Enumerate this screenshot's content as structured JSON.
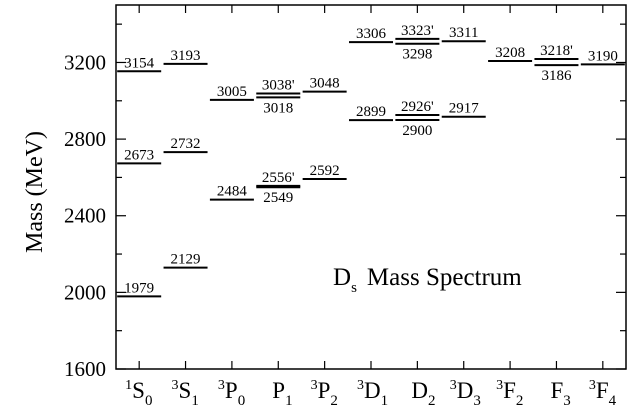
{
  "chart_data": {
    "type": "level-diagram",
    "title_main": "D",
    "title_sub": "s",
    "title_rest": "Mass Spectrum",
    "ylabel": "Mass  (MeV)",
    "ylim": [
      1600,
      3500
    ],
    "yticks": [
      1600,
      2000,
      2400,
      2800,
      3200
    ],
    "categories": [
      {
        "pre": "1",
        "main": "S",
        "sub": "0"
      },
      {
        "pre": "3",
        "main": "S",
        "sub": "1"
      },
      {
        "pre": "3",
        "main": "P",
        "sub": "0"
      },
      {
        "pre": "",
        "main": "P",
        "sub": "1"
      },
      {
        "pre": "3",
        "main": "P",
        "sub": "2"
      },
      {
        "pre": "3",
        "main": "D",
        "sub": "1"
      },
      {
        "pre": "",
        "main": "D",
        "sub": "2"
      },
      {
        "pre": "3",
        "main": "D",
        "sub": "3"
      },
      {
        "pre": "3",
        "main": "F",
        "sub": "2"
      },
      {
        "pre": "",
        "main": "F",
        "sub": "3"
      },
      {
        "pre": "3",
        "main": "F",
        "sub": "4"
      }
    ],
    "levels": [
      {
        "cat": 0,
        "value": 1979,
        "label": "1979",
        "pos": "above"
      },
      {
        "cat": 0,
        "value": 2673,
        "label": "2673",
        "pos": "above"
      },
      {
        "cat": 0,
        "value": 3154,
        "label": "3154",
        "pos": "above"
      },
      {
        "cat": 1,
        "value": 2129,
        "label": "2129",
        "pos": "above"
      },
      {
        "cat": 1,
        "value": 2732,
        "label": "2732",
        "pos": "above"
      },
      {
        "cat": 1,
        "value": 3193,
        "label": "3193",
        "pos": "above"
      },
      {
        "cat": 2,
        "value": 2484,
        "label": "2484",
        "pos": "above"
      },
      {
        "cat": 2,
        "value": 3005,
        "label": "3005",
        "pos": "above"
      },
      {
        "cat": 3,
        "value": 2549,
        "label": "2549",
        "pos": "below"
      },
      {
        "cat": 3,
        "value": 2556,
        "label": "2556'",
        "pos": "above"
      },
      {
        "cat": 3,
        "value": 3018,
        "label": "3018",
        "pos": "below"
      },
      {
        "cat": 3,
        "value": 3038,
        "label": "3038'",
        "pos": "above"
      },
      {
        "cat": 4,
        "value": 2592,
        "label": "2592",
        "pos": "above"
      },
      {
        "cat": 4,
        "value": 3048,
        "label": "3048",
        "pos": "above"
      },
      {
        "cat": 5,
        "value": 2899,
        "label": "2899",
        "pos": "above"
      },
      {
        "cat": 5,
        "value": 3306,
        "label": "3306",
        "pos": "above"
      },
      {
        "cat": 6,
        "value": 2900,
        "label": "2900",
        "pos": "below"
      },
      {
        "cat": 6,
        "value": 2926,
        "label": "2926'",
        "pos": "above"
      },
      {
        "cat": 6,
        "value": 3298,
        "label": "3298",
        "pos": "below"
      },
      {
        "cat": 6,
        "value": 3323,
        "label": "3323'",
        "pos": "above"
      },
      {
        "cat": 7,
        "value": 2917,
        "label": "2917",
        "pos": "above"
      },
      {
        "cat": 7,
        "value": 3311,
        "label": "3311",
        "pos": "above"
      },
      {
        "cat": 8,
        "value": 3208,
        "label": "3208",
        "pos": "above"
      },
      {
        "cat": 9,
        "value": 3186,
        "label": "3186",
        "pos": "below"
      },
      {
        "cat": 9,
        "value": 3218,
        "label": "3218'",
        "pos": "above"
      },
      {
        "cat": 10,
        "value": 3190,
        "label": "3190",
        "pos": "above"
      }
    ]
  }
}
